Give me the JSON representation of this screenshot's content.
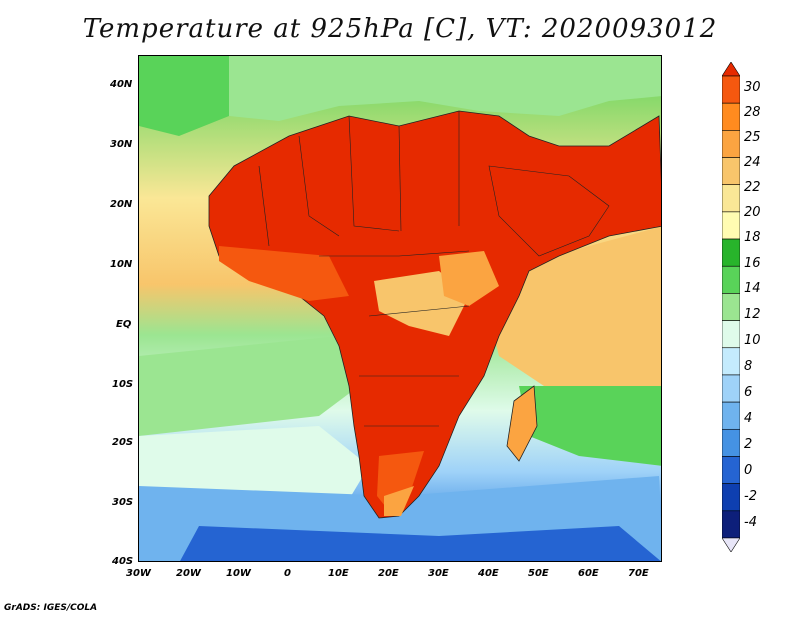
{
  "title": "Temperature at 925hPa [C], VT: 2020093012",
  "credit": "GrADS: IGES/COLA",
  "map": {
    "lon_range": [
      -30,
      75
    ],
    "lat_range": [
      -40,
      45
    ],
    "lat_ticks": [
      "40N",
      "30N",
      "20N",
      "10N",
      "EQ",
      "10S",
      "20S",
      "30S",
      "40S"
    ],
    "lon_ticks": [
      "30W",
      "20W",
      "10W",
      "0",
      "10E",
      "20E",
      "30E",
      "40E",
      "50E",
      "60E",
      "70E"
    ]
  },
  "colorbar": {
    "labels": [
      "30",
      "28",
      "25",
      "24",
      "22",
      "20",
      "18",
      "16",
      "14",
      "12",
      "10",
      "8",
      "6",
      "4",
      "2",
      "0",
      "-2",
      "-4"
    ],
    "colors": [
      "#e62a00",
      "#f5580f",
      "#ff8b1f",
      "#fba441",
      "#f8c56b",
      "#fae796",
      "#fffcb2",
      "#28b42b",
      "#59d359",
      "#9be591",
      "#dffbea",
      "#c4ebfd",
      "#9fd2f8",
      "#6fb3ee",
      "#4592e3",
      "#2564d2",
      "#0e3fb0",
      "#0d1f7a",
      "#e8e6f8"
    ]
  }
}
